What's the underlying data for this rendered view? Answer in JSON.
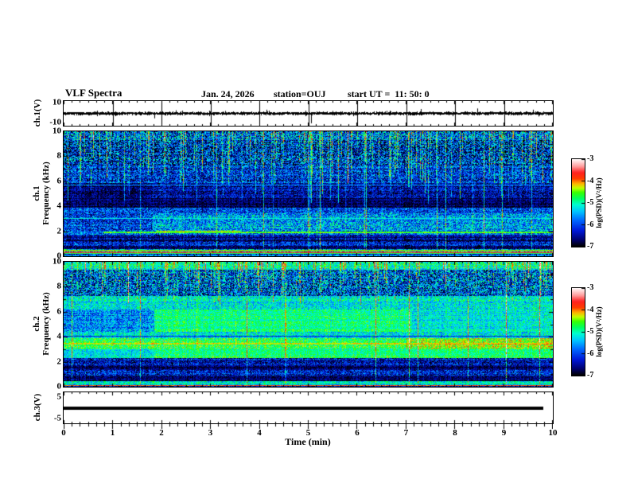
{
  "header": {
    "title": "VLF Spectra",
    "date": "Jan. 24, 2026",
    "station": "station=OUJ",
    "start_ut": "start UT =  11: 50: 0"
  },
  "xaxis": {
    "title": "Time (min)",
    "ticks": [
      "0",
      "1",
      "2",
      "3",
      "4",
      "5",
      "6",
      "7",
      "8",
      "9",
      "10"
    ],
    "min": 0,
    "max": 10,
    "minor_per_major": 6
  },
  "panels": {
    "ch1_wave": {
      "label": "ch.1(V)",
      "yticks": [
        "10",
        "-10"
      ],
      "ymin": -10,
      "ymax": 10
    },
    "spec1": {
      "label_channel": "ch.1",
      "label_freq": "Frequency (kHz)",
      "yticks": [
        "10",
        "8",
        "6",
        "4",
        "2",
        "0"
      ],
      "ymin": 0,
      "ymax": 10
    },
    "spec2": {
      "label_channel": "ch.2",
      "label_freq": "Frequency (kHz)",
      "yticks": [
        "10",
        "8",
        "6",
        "4",
        "2",
        "0"
      ],
      "ymin": 0,
      "ymax": 10
    },
    "ch3_wave": {
      "label": "ch.3(V)",
      "yticks": [
        "5",
        "-5"
      ],
      "ymin": -5,
      "ymax": 5
    }
  },
  "colorbar": {
    "label": "log(PSD)(V²/Hz)",
    "ticks": [
      "-3",
      "-4",
      "-5",
      "-6",
      "-7"
    ],
    "zmin": -7,
    "zmax": -3
  },
  "chart_data": [
    {
      "type": "line",
      "panel": "ch.1(V) waveform",
      "xlim": [
        0,
        10
      ],
      "ylim": [
        -10,
        10
      ],
      "description": "noisy voltage trace centered at 0 V, ~±1 V band, 1-min vertical gridlines",
      "noise_v": 1.0,
      "spikes": [
        {
          "t": 1.85,
          "v": -4
        },
        {
          "t": 5.05,
          "v": -8
        },
        {
          "t": 2.3,
          "v": 2.5
        },
        {
          "t": 3.3,
          "v": 2
        },
        {
          "t": 4.15,
          "v": 3
        },
        {
          "t": 5.5,
          "v": 2
        },
        {
          "t": 6.6,
          "v": 2
        },
        {
          "t": 7.3,
          "v": 3.5
        },
        {
          "t": 8.45,
          "v": 4
        },
        {
          "t": 9.6,
          "v": 3
        },
        {
          "t": 9.7,
          "v": -2.5
        }
      ]
    },
    {
      "type": "heatmap",
      "panel": "ch.1 spectrogram",
      "xlim": [
        0,
        10
      ],
      "ylim": [
        0,
        10
      ],
      "zlim": [
        -7,
        -3
      ],
      "bands": [
        {
          "f": [
            9.3,
            10.01
          ],
          "r": [
            [
              0,
              0.3,
              0.28
            ]
          ]
        },
        {
          "f": [
            7.3,
            9.3
          ],
          "r": [
            [
              0,
              0.2,
              0.3
            ]
          ]
        },
        {
          "f": [
            5.9,
            7.3
          ],
          "r": [
            [
              0,
              0.22,
              0.22
            ]
          ]
        },
        {
          "f": [
            4.7,
            5.9
          ],
          "r": [
            [
              0,
              0.08,
              0.12
            ],
            [
              1.8,
              0.14,
              0.16
            ]
          ]
        },
        {
          "f": [
            3.9,
            4.7
          ],
          "r": [
            [
              0,
              0.07,
              0.1
            ]
          ]
        },
        {
          "f": [
            3.5,
            3.9
          ],
          "r": [
            [
              0,
              0.25,
              0.2
            ]
          ]
        },
        {
          "f": [
            2.1,
            3.5
          ],
          "r": [
            [
              0,
              0.22,
              0.2
            ],
            [
              1.8,
              0.34,
              0.22
            ]
          ]
        },
        {
          "f": [
            1.75,
            2.1
          ],
          "r": [
            [
              0,
              0.3,
              0.2
            ]
          ]
        },
        {
          "f": [
            1.2,
            1.75
          ],
          "r": [
            [
              0,
              0.14,
              0.16
            ]
          ]
        },
        {
          "f": [
            0.85,
            1.2
          ],
          "r": [
            [
              0,
              0.22,
              0.18
            ]
          ]
        },
        {
          "f": [
            0.6,
            0.85
          ],
          "r": [
            [
              0,
              0.1,
              0.12
            ]
          ]
        },
        {
          "f": [
            0.2,
            0.6
          ],
          "r": [
            [
              0,
              0.32,
              0.25
            ]
          ]
        },
        {
          "f": [
            0,
            0.2
          ],
          "r": [
            [
              0,
              0.22,
              0.2
            ]
          ]
        }
      ],
      "hlines": [
        {
          "f": 1.95,
          "w": 2,
          "v": 0.6,
          "t": [
            0.8,
            10
          ]
        },
        {
          "f": 2.02,
          "w": 1,
          "v": 0.72,
          "t": [
            1.9,
            3.6
          ]
        },
        {
          "f": 1.5,
          "w": 1,
          "v": 0.04
        },
        {
          "f": 1.3,
          "w": 1,
          "v": 0.04
        },
        {
          "f": 0.72,
          "w": 1,
          "v": 0.04
        },
        {
          "f": 0.5,
          "w": 1,
          "v": 0.6
        },
        {
          "f": 0.42,
          "w": 1,
          "v": 0.74
        },
        {
          "f": 0.33,
          "w": 1,
          "v": 0.78
        },
        {
          "f": 0.25,
          "w": 1,
          "v": 0.55
        },
        {
          "f": 3.05,
          "w": 1,
          "v": 0.42
        },
        {
          "f": 5.75,
          "w": 1,
          "v": 0.4
        },
        {
          "f": 0.08,
          "w": 1,
          "v": 0.35
        }
      ],
      "streaks": {
        "count": 150,
        "s": [
          0.2,
          0.5
        ],
        "d": [
          4.2,
          9.0
        ],
        "full": 0.12,
        "hot": 0.04
      }
    },
    {
      "type": "heatmap",
      "panel": "ch.2 spectrogram",
      "xlim": [
        0,
        10
      ],
      "ylim": [
        0,
        10
      ],
      "zlim": [
        -7,
        -3
      ],
      "bands": [
        {
          "f": [
            9.4,
            10.01
          ],
          "r": [
            [
              0,
              0.48,
              0.15
            ]
          ]
        },
        {
          "f": [
            7.3,
            9.4
          ],
          "r": [
            [
              0,
              0.26,
              0.3
            ]
          ]
        },
        {
          "f": [
            6.2,
            7.3
          ],
          "r": [
            [
              0,
              0.45,
              0.15
            ]
          ]
        },
        {
          "f": [
            4.4,
            6.2
          ],
          "r": [
            [
              0,
              0.33,
              0.18
            ],
            [
              1.85,
              0.53,
              0.1
            ],
            [
              7.1,
              0.45,
              0.12
            ]
          ]
        },
        {
          "f": [
            3.9,
            4.4
          ],
          "r": [
            [
              0,
              0.42,
              0.15
            ]
          ]
        },
        {
          "f": [
            3.0,
            3.9
          ],
          "r": [
            [
              0,
              0.55,
              0.12
            ],
            [
              7.0,
              0.62,
              0.12
            ]
          ]
        },
        {
          "f": [
            2.35,
            3.0
          ],
          "r": [
            [
              0,
              0.45,
              0.12
            ],
            [
              1.85,
              0.55,
              0.1
            ]
          ]
        },
        {
          "f": [
            1.75,
            2.35
          ],
          "r": [
            [
              0,
              0.16,
              0.18
            ]
          ]
        },
        {
          "f": [
            1.4,
            1.75
          ],
          "r": [
            [
              0,
              0.08,
              0.1
            ]
          ]
        },
        {
          "f": [
            0.9,
            1.4
          ],
          "r": [
            [
              0,
              0.2,
              0.18
            ]
          ]
        },
        {
          "f": [
            0.5,
            0.9
          ],
          "r": [
            [
              0,
              0.07,
              0.1
            ]
          ]
        },
        {
          "f": [
            0.18,
            0.5
          ],
          "r": [
            [
              0,
              0.45,
              0.15
            ]
          ]
        },
        {
          "f": [
            0,
            0.18
          ],
          "r": [
            [
              0,
              0.15,
              0.15
            ]
          ]
        }
      ],
      "hlines": [
        {
          "f": 3.5,
          "w": 2,
          "v": 0.66
        },
        {
          "f": 3.45,
          "w": 1,
          "v": 0.72,
          "t": [
            7.0,
            10
          ]
        },
        {
          "f": 4.1,
          "w": 1,
          "v": 0.2
        },
        {
          "f": 2.1,
          "w": 1,
          "v": 0.05
        },
        {
          "f": 1.6,
          "w": 1,
          "v": 0.03
        },
        {
          "f": 0.7,
          "w": 1,
          "v": 0.03
        },
        {
          "f": 0.35,
          "w": 1,
          "v": 0.55
        },
        {
          "f": 0.12,
          "w": 1,
          "v": 0.75
        }
      ],
      "streaks": {
        "count": 170,
        "s": [
          0.15,
          0.4
        ],
        "d": [
          6.5,
          9.2
        ],
        "full": 0.1,
        "hot": 0.05
      }
    },
    {
      "type": "line",
      "panel": "ch.3(V) waveform",
      "xlim": [
        0,
        10
      ],
      "ylim": [
        -5,
        5
      ],
      "description": "flat thick trace at 0 V ending near t=9.8 min",
      "value": 0,
      "t_end": 9.8,
      "thickness_px": 4
    }
  ],
  "colormap": {
    "stops": [
      [
        0,
        "#000000"
      ],
      [
        0.07,
        "#000068"
      ],
      [
        0.18,
        "#0018d8"
      ],
      [
        0.3,
        "#0068ff"
      ],
      [
        0.4,
        "#00c4ff"
      ],
      [
        0.48,
        "#00ffd0"
      ],
      [
        0.55,
        "#00ff60"
      ],
      [
        0.62,
        "#38ff00"
      ],
      [
        0.67,
        "#c0ff00"
      ],
      [
        0.72,
        "#ffb400"
      ],
      [
        0.78,
        "#ff3c00"
      ],
      [
        0.85,
        "#ff2020"
      ],
      [
        0.92,
        "#ff9c9c"
      ],
      [
        1,
        "#fff8f8"
      ]
    ]
  }
}
